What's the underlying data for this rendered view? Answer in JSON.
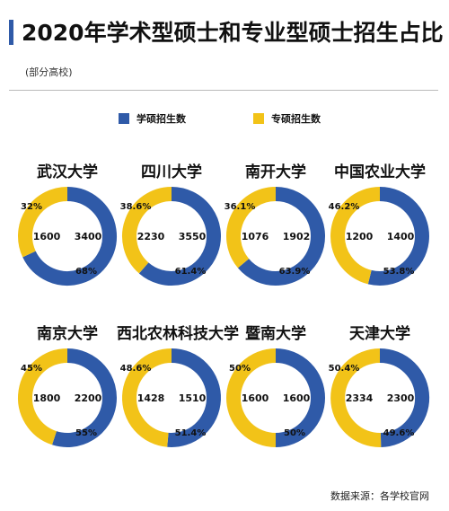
{
  "header": {
    "title": "2020年学术型硕士和专业型硕士招生占比",
    "subtitle": "(部分高校)"
  },
  "legend": {
    "academic_label": "学硕招生数",
    "professional_label": "专硕招生数"
  },
  "colors": {
    "academic": "#2f5aa8",
    "professional": "#f2c318",
    "accent_bar": "#2f5aa8"
  },
  "footer": {
    "source": "数据来源：各学校官网"
  },
  "chart_data": {
    "type": "pie",
    "variant": "donut",
    "series_order": [
      "学硕招生数",
      "专硕招生数"
    ],
    "items": [
      {
        "university": "武汉大学",
        "academic": 3400,
        "professional": 1600,
        "academic_pct": "68%",
        "professional_pct": "32%"
      },
      {
        "university": "四川大学",
        "academic": 3550,
        "professional": 2230,
        "academic_pct": "61.4%",
        "professional_pct": "38.6%"
      },
      {
        "university": "南开大学",
        "academic": 1902,
        "professional": 1076,
        "academic_pct": "63.9%",
        "professional_pct": "36.1%"
      },
      {
        "university": "中国农业大学",
        "academic": 1400,
        "professional": 1200,
        "academic_pct": "53.8%",
        "professional_pct": "46.2%"
      },
      {
        "university": "南京大学",
        "academic": 2200,
        "professional": 1800,
        "academic_pct": "55%",
        "professional_pct": "45%"
      },
      {
        "university": "西北农林科技大学",
        "academic": 1510,
        "professional": 1428,
        "academic_pct": "51.4%",
        "professional_pct": "48.6%"
      },
      {
        "university": "暨南大学",
        "academic": 1600,
        "professional": 1600,
        "academic_pct": "50%",
        "professional_pct": "50%"
      },
      {
        "university": "天津大学",
        "academic": 2300,
        "professional": 2334,
        "academic_pct": "49.6%",
        "professional_pct": "50.4%"
      }
    ]
  }
}
